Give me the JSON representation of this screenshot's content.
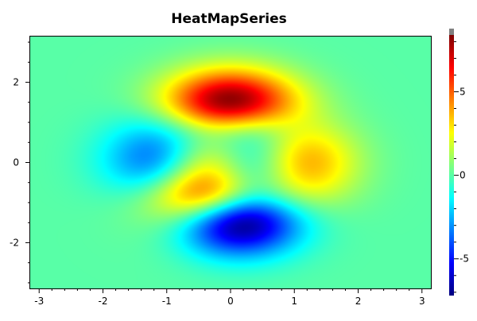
{
  "chart_data": {
    "type": "heatmap",
    "title": "HeatMapSeries",
    "function": "peaks",
    "x_range": [
      -3.14,
      3.14
    ],
    "y_range": [
      -3.14,
      3.14
    ],
    "x_ticks": [
      "-3",
      "-2",
      "-1",
      "0",
      "1",
      "2",
      "3"
    ],
    "x_tick_values": [
      -3,
      -2,
      -1,
      0,
      1,
      2,
      3
    ],
    "y_ticks": [
      "2",
      "0",
      "-2"
    ],
    "y_tick_values": [
      2,
      0,
      -2
    ],
    "colorbar": {
      "min": -7.2,
      "max": 8.4,
      "ticks": [
        "5",
        "0",
        "-5"
      ],
      "tick_values": [
        5,
        0,
        -5
      ],
      "colormap": "jet"
    },
    "colors": {
      "plot_border": "#000000",
      "colorbar_cap": "#808080"
    }
  }
}
